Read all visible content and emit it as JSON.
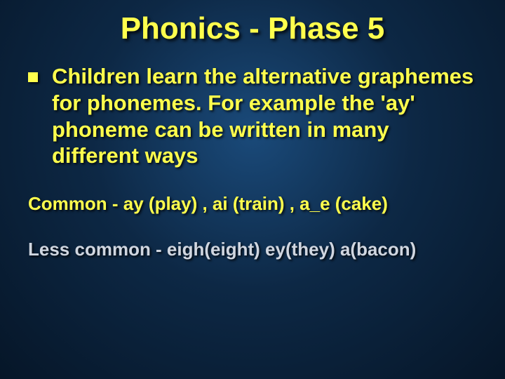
{
  "slide": {
    "title": {
      "text": "Phonics - Phase 5",
      "color": "#ffff4d",
      "fontsize": 44
    },
    "bullet": {
      "color": "#ffff4d",
      "size": 14
    },
    "body": {
      "text": "Children learn the alternative graphemes for phonemes.  For example the 'ay' phoneme can be written in many different ways",
      "color": "#ffff4d",
      "fontsize": 31
    },
    "line1": {
      "text": "Common - ay  (play)  , ai (train)  , a_e  (cake)",
      "color": "#ffff4d",
      "fontsize": 26
    },
    "line2": {
      "text": "Less common - eigh(eight)   ey(they)   a(bacon)",
      "color": "#d0d6e0",
      "fontsize": 26
    }
  },
  "background": {
    "gradient_center": "#1a4a7a",
    "gradient_mid": "#0d2845",
    "gradient_edge": "#061628"
  }
}
